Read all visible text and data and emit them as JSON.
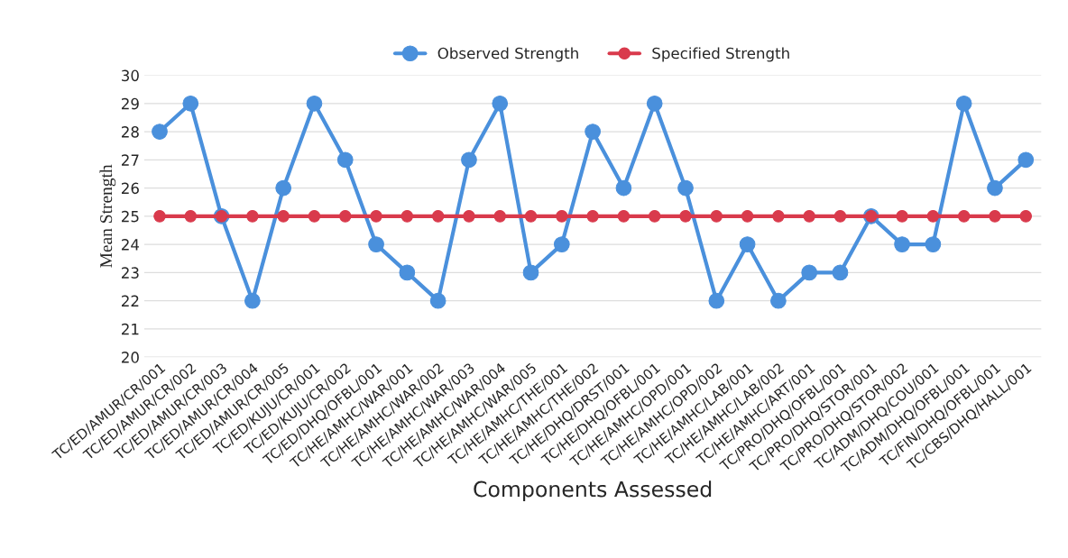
{
  "chart_data": {
    "type": "line",
    "xlabel": "Components Assessed",
    "ylabel": "Mean Strength",
    "categories": [
      "TC/ED/AMUR/CR/001",
      "TC/ED/AMUR/CR/002",
      "TC/ED/AMUR/CR/003",
      "TC/ED/AMUR/CR/004",
      "TC/ED/AMUR/CR/005",
      "TC/ED/KUJU/CR/001",
      "TC/ED/KUJU/CR/002",
      "TC/ED/DHQ/OFBL/001",
      "TC/HE/AMHC/WAR/001",
      "TC/HE/AMHC/WAR/002",
      "TC/HE/AMHC/WAR/003",
      "TC/HE/AMHC/WAR/004",
      "TC/HE/AMHC/WAR/005",
      "TC/HE/AMHC/THE/001",
      "TC/HE/AMHC/THE/002",
      "TC/HE/DHQ/DRST/001",
      "TC/HE/DHQ/OFBL/001",
      "TC/HE/AMHC/OPD/001",
      "TC/HE/AMHC/OPD/002",
      "TC/HE/AMHC/LAB/001",
      "TC/HE/AMHC/LAB/002",
      "TC/HE/AMHC/ART/001",
      "TC/PRO/DHQ/OFBL/001",
      "TC/PRO/DHQ/STOR/001",
      "TC/PRO/DHQ/STOR/002",
      "TC/ADM/DHQ/COU/001",
      "TC/ADM/DHQ/OFBL/001",
      "TC/FIN/DHQ/OFBL/001",
      "TC/CBS/DHQ/HALL/001"
    ],
    "series": [
      {
        "name": "Observed Strength",
        "color": "#4a90dc",
        "values": [
          28,
          29,
          25,
          22,
          26,
          29,
          27,
          24,
          23,
          22,
          27,
          29,
          23,
          24,
          28,
          26,
          29,
          26,
          22,
          24,
          22,
          23,
          23,
          25,
          24,
          24,
          29,
          26,
          27
        ]
      },
      {
        "name": "Specified Strength",
        "color": "#d93a4c",
        "values": [
          25,
          25,
          25,
          25,
          25,
          25,
          25,
          25,
          25,
          25,
          25,
          25,
          25,
          25,
          25,
          25,
          25,
          25,
          25,
          25,
          25,
          25,
          25,
          25,
          25,
          25,
          25,
          25,
          25
        ]
      }
    ],
    "ylim": [
      20,
      30
    ],
    "yticks": [
      20,
      21,
      22,
      23,
      24,
      25,
      26,
      27,
      28,
      29,
      30
    ],
    "grid": "y",
    "legend": "top",
    "marker": "circle",
    "line_style": "solid"
  }
}
